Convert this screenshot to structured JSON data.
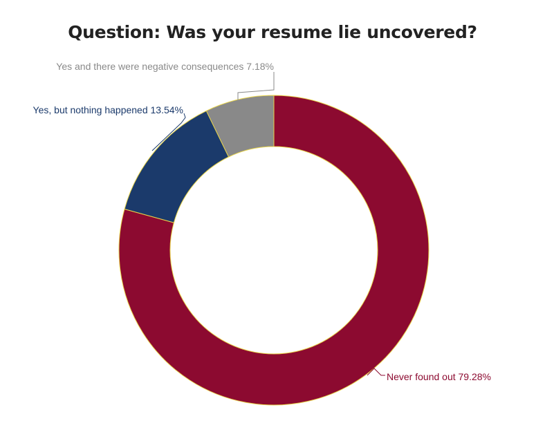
{
  "colors": {
    "never": "#8c0a30",
    "nothing": "#1b3a6b",
    "negative": "#898989",
    "slice_stroke": "#e8d44a",
    "title": "#222222"
  },
  "chart_data": {
    "type": "pie",
    "donut": true,
    "title": "Question: Was your resume lie uncovered?",
    "slices": [
      {
        "label": "Never found out",
        "value": 79.28,
        "display": "Never found out 79.28%",
        "color_key": "never"
      },
      {
        "label": "Yes, but nothing happened",
        "value": 13.54,
        "display": "Yes, but nothing happened 13.54%",
        "color_key": "nothing"
      },
      {
        "label": "Yes and there were negative consequences",
        "value": 7.18,
        "display": "Yes and there were negative consequences 7.18%",
        "color_key": "negative"
      }
    ],
    "legend": "none"
  }
}
